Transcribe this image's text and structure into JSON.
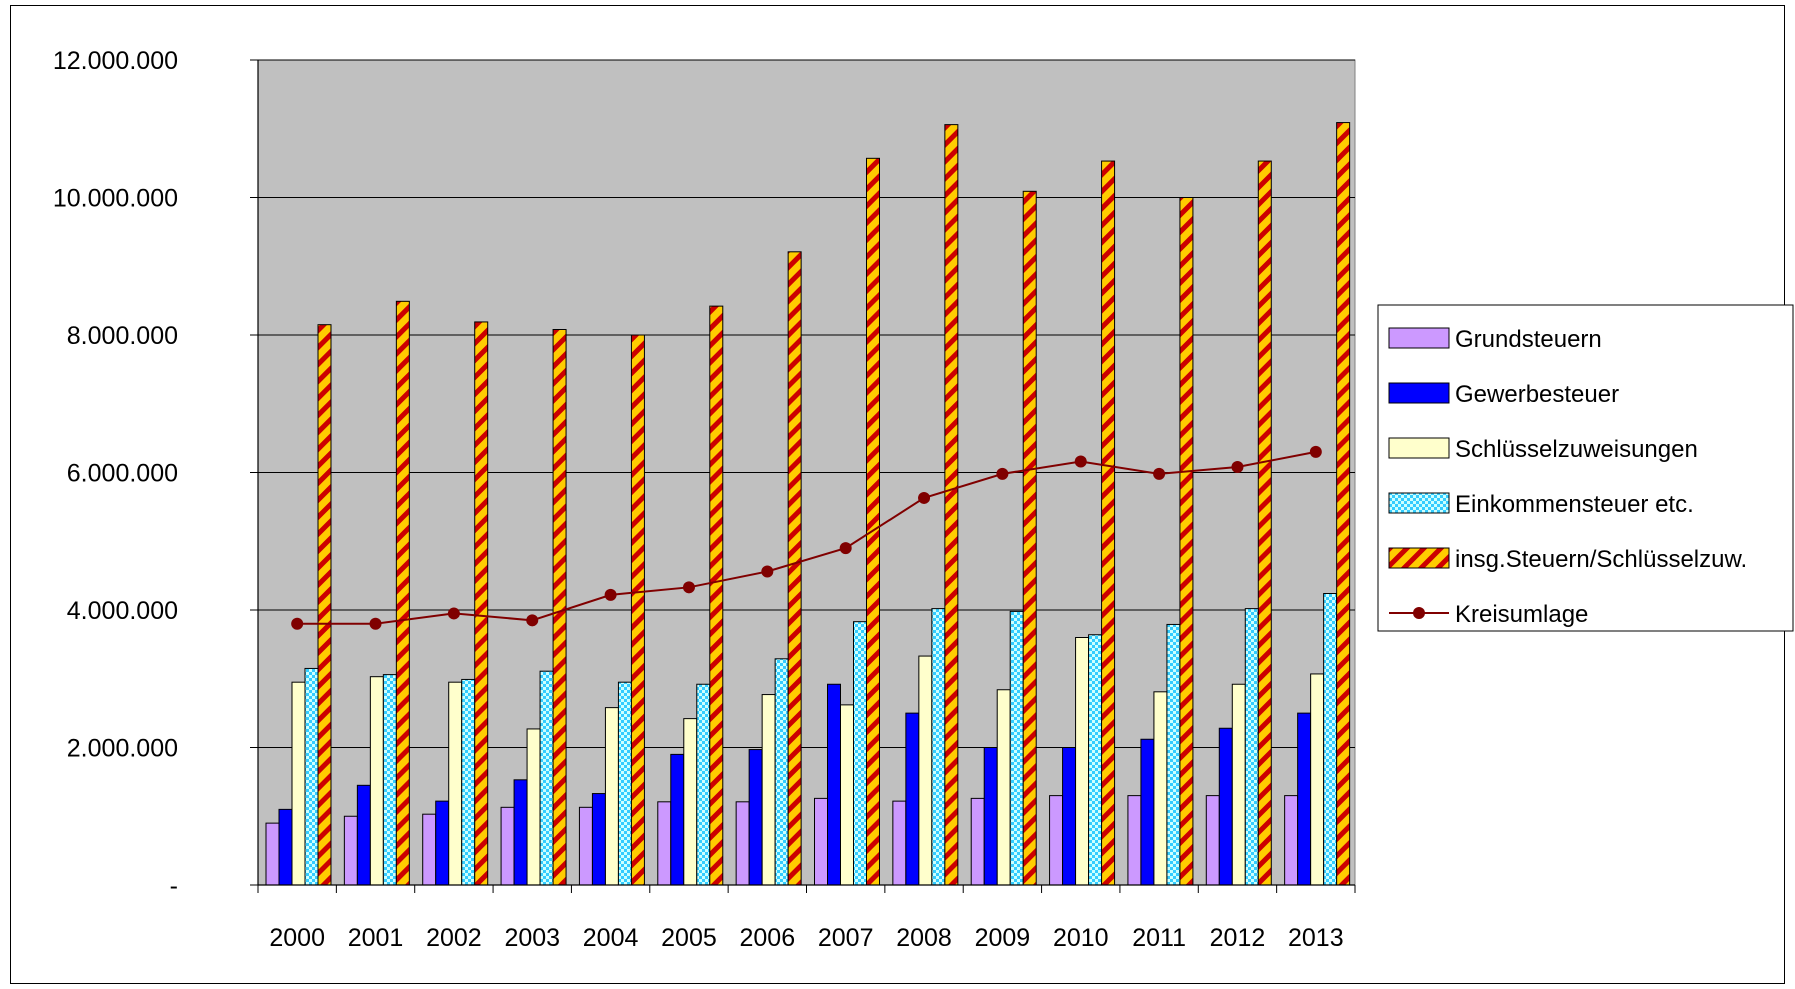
{
  "chart_data": {
    "type": "bar",
    "title": "",
    "xlabel": "",
    "ylabel": "",
    "categories": [
      "2000",
      "2001",
      "2002",
      "2003",
      "2004",
      "2005",
      "2006",
      "2007",
      "2008",
      "2009",
      "2010",
      "2011",
      "2012",
      "2013"
    ],
    "ylim": [
      0,
      12000000
    ],
    "y_ticks": [
      0,
      2000000,
      4000000,
      6000000,
      8000000,
      10000000,
      12000000
    ],
    "y_tick_labels": [
      "-",
      "2.000.000",
      "4.000.000",
      "6.000.000",
      "8.000.000",
      "10.000.000",
      "12.000.000"
    ],
    "grid": "horizontal",
    "plot_background": "#c0c0c0",
    "legend_position": "right",
    "series": [
      {
        "name": "Grundsteuern",
        "kind": "bar",
        "color": "#cc99ff",
        "values": [
          900000,
          1000000,
          1030000,
          1130000,
          1130000,
          1210000,
          1210000,
          1260000,
          1220000,
          1260000,
          1300000,
          1300000,
          1300000,
          1300000
        ]
      },
      {
        "name": "Gewerbesteuer",
        "kind": "bar",
        "color": "#0000ff",
        "values": [
          1100000,
          1450000,
          1220000,
          1530000,
          1330000,
          1900000,
          1970000,
          2920000,
          2500000,
          2000000,
          2000000,
          2120000,
          2280000,
          2500000
        ]
      },
      {
        "name": "Schlüsselzuweisungen",
        "kind": "bar",
        "color": "#ffffcc",
        "values": [
          2950000,
          3030000,
          2950000,
          2270000,
          2580000,
          2420000,
          2770000,
          2620000,
          3330000,
          2840000,
          3600000,
          2810000,
          2920000,
          3070000
        ]
      },
      {
        "name": "Einkommensteuer etc.",
        "kind": "bar",
        "color": "#33ccff",
        "pattern": "checker",
        "values": [
          3150000,
          3060000,
          2990000,
          3110000,
          2950000,
          2920000,
          3290000,
          3830000,
          4020000,
          3980000,
          3640000,
          3790000,
          4020000,
          4240000
        ]
      },
      {
        "name": "insg.Steuern/Schlüsselzuw.",
        "kind": "bar",
        "color": "#ffcc00",
        "pattern": "diagonal-red",
        "values": [
          8150000,
          8490000,
          8190000,
          8080000,
          8000000,
          8420000,
          9210000,
          10570000,
          11060000,
          10090000,
          10530000,
          10000000,
          10530000,
          11090000
        ]
      },
      {
        "name": "Kreisumlage",
        "kind": "line",
        "color": "#800000",
        "values": [
          3800000,
          3800000,
          3950000,
          3850000,
          4220000,
          4330000,
          4560000,
          4900000,
          5630000,
          5980000,
          6160000,
          5980000,
          6080000,
          6300000
        ]
      }
    ]
  }
}
